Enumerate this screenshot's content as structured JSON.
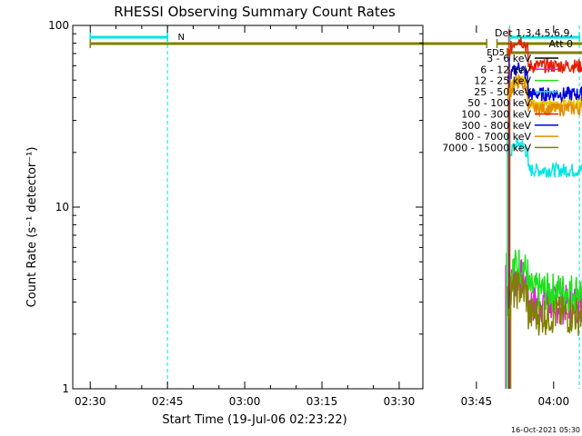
{
  "chart_data": {
    "type": "line",
    "title": "RHESSI Observing Summary Count Rates",
    "xlabel": "Start Time (19-Jul-06 02:23:22)",
    "ylabel": "Count Rate (s⁻¹ detector⁻¹)",
    "y_scale": "log",
    "ylim": [
      1,
      100
    ],
    "x_range_minutes": [
      -3.4,
      64.6
    ],
    "x_ticks": [
      {
        "label": "02:30",
        "minute": 6.6
      },
      {
        "label": "02:45",
        "minute": 21.6
      },
      {
        "label": "03:00",
        "minute": 36.6
      },
      {
        "label": "03:15",
        "minute": 51.6
      },
      {
        "label": "03:30",
        "minute": 66.6
      },
      {
        "label": "03:45",
        "minute": 81.6
      },
      {
        "label": "04:00",
        "minute": 96.6
      }
    ],
    "y_ticks": [
      {
        "label": "1",
        "value": 1
      },
      {
        "label": "10",
        "value": 10
      },
      {
        "label": "100",
        "value": 100
      }
    ],
    "legend": {
      "header_line1": "Det 1,3,4,5,6,9,",
      "header_line2": "Att 0",
      "placement": "right"
    },
    "series": [
      {
        "name": "3 - 6 keV",
        "color": "#000000",
        "level": null
      },
      {
        "name": "6 - 12 keV",
        "color": "#e01ee0",
        "level": 3.0
      },
      {
        "name": "12 - 25 keV",
        "color": "#1ee01e",
        "level": 3.5
      },
      {
        "name": "25 - 50 keV",
        "color": "#00e5e5",
        "level": 16
      },
      {
        "name": "50 - 100 keV",
        "color": "#e5c800",
        "level": 37
      },
      {
        "name": "100 - 300 keV",
        "color": "#e51e00",
        "level": 60
      },
      {
        "name": "300 - 800 keV",
        "color": "#0000e0",
        "level": 42
      },
      {
        "name": "800 - 7000 keV",
        "color": "#e58c00",
        "level": 35
      },
      {
        "name": "7000 - 15000 keV",
        "color": "#808000",
        "level": 2.6
      }
    ],
    "bars": [
      {
        "label": "N",
        "color": "#00e5e5",
        "segments": [
          [
            0,
            15
          ],
          [
            81.5,
            95
          ]
        ]
      },
      {
        "label": "",
        "color": "#808000",
        "segments": [
          [
            0,
            77
          ],
          [
            79,
            96
          ]
        ]
      },
      {
        "label": "FD5",
        "color": "#808000",
        "segments": [
          [
            81,
            96
          ]
        ]
      }
    ],
    "footer_date": "16-Oct-2021 05:30"
  }
}
